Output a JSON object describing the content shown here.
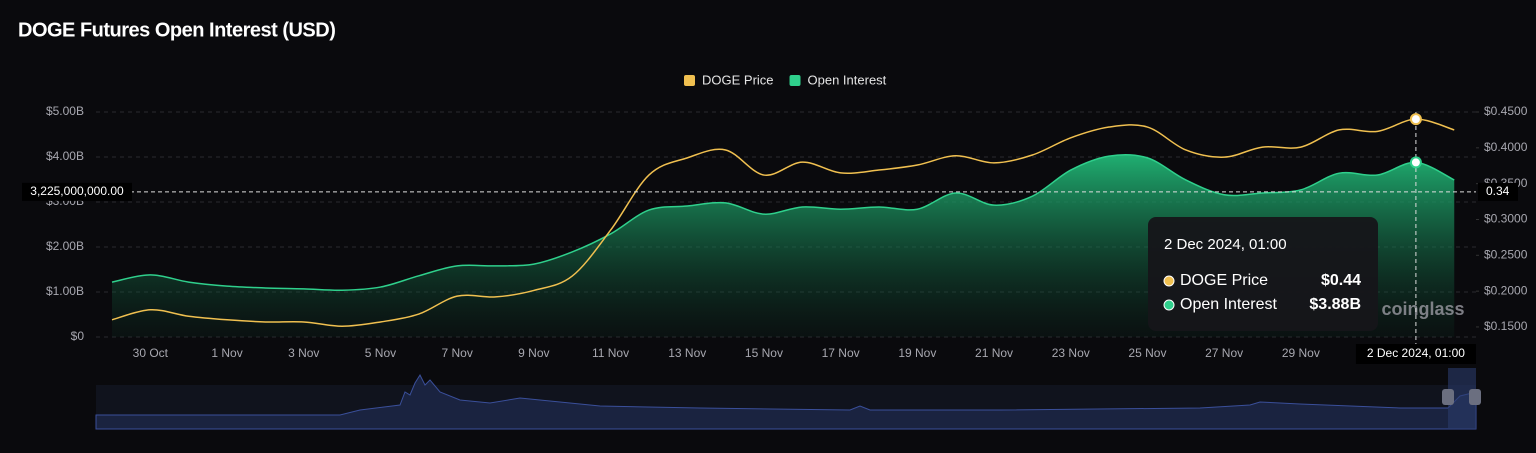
{
  "chart_data": {
    "type": "line",
    "title": "DOGE Futures Open Interest (USD)",
    "categories": [
      null,
      "30 Oct",
      null,
      "1 Nov",
      null,
      "3 Nov",
      null,
      "5 Nov",
      null,
      "7 Nov",
      null,
      "9 Nov",
      null,
      "11 Nov",
      null,
      "13 Nov",
      null,
      "15 Nov",
      null,
      "17 Nov",
      null,
      "19 Nov",
      null,
      "21 Nov",
      null,
      "23 Nov",
      null,
      "25 Nov",
      null,
      "27 Nov",
      null,
      "29 Nov",
      null,
      null,
      null,
      null
    ],
    "series": [
      {
        "name": "DOGE Price",
        "color": "#f0c050",
        "axis": "y2",
        "values": [
          0.16,
          0.174,
          0.165,
          0.16,
          0.157,
          0.157,
          0.151,
          0.157,
          0.168,
          0.193,
          0.192,
          0.201,
          0.221,
          0.285,
          0.362,
          0.386,
          0.397,
          0.362,
          0.38,
          0.365,
          0.369,
          0.376,
          0.389,
          0.379,
          0.39,
          0.414,
          0.429,
          0.429,
          0.397,
          0.387,
          0.401,
          0.401,
          0.425,
          0.423,
          0.44,
          0.425
        ]
      },
      {
        "name": "Open Interest",
        "color": "#2fd08c",
        "values": [
          1220000000,
          1380000000,
          1220000000,
          1130000000,
          1090000000,
          1070000000,
          1040000000,
          1110000000,
          1360000000,
          1580000000,
          1580000000,
          1620000000,
          1890000000,
          2290000000,
          2820000000,
          2910000000,
          2980000000,
          2730000000,
          2890000000,
          2840000000,
          2890000000,
          2840000000,
          3200000000,
          2930000000,
          3130000000,
          3710000000,
          4020000000,
          3980000000,
          3490000000,
          3160000000,
          3200000000,
          3270000000,
          3640000000,
          3600000000,
          3880000000,
          3490000000
        ]
      }
    ],
    "ylim": [
      0,
      5000000000
    ],
    "yticks": [
      {
        "value": 0,
        "label": "$0"
      },
      {
        "value": 1000000000,
        "label": "$1.00B"
      },
      {
        "value": 2000000000,
        "label": "$2.00B"
      },
      {
        "value": 3000000000,
        "label": "$3.00B"
      },
      {
        "value": 4000000000,
        "label": "$4.00B"
      },
      {
        "value": 5000000000,
        "label": "$5.00B"
      }
    ],
    "y2lim": [
      0.136,
      0.45
    ],
    "y2ticks": [
      {
        "value": 0.15,
        "label": "$0.1500"
      },
      {
        "value": 0.2,
        "label": "$0.2000"
      },
      {
        "value": 0.25,
        "label": "$0.2500"
      },
      {
        "value": 0.3,
        "label": "$0.3000"
      },
      {
        "value": 0.35,
        "label": "$0.3500"
      },
      {
        "value": 0.4,
        "label": "$0.4000"
      },
      {
        "value": 0.45,
        "label": "$0.4500"
      }
    ],
    "grid": true,
    "legend": "top",
    "crosshair": {
      "index": 34,
      "x_label": "2 Dec 2024, 01:00",
      "y": {
        "value": 3225000000,
        "label": "3,225,000,000.00"
      },
      "y2": 0.34
    },
    "tooltip": {
      "title": "2 Dec 2024, 01:00",
      "items": [
        {
          "name": "DOGE Price",
          "value": "$0.44"
        },
        {
          "name": "Open Interest",
          "value": "$3.88B"
        }
      ]
    },
    "watermark": "coinglass"
  }
}
